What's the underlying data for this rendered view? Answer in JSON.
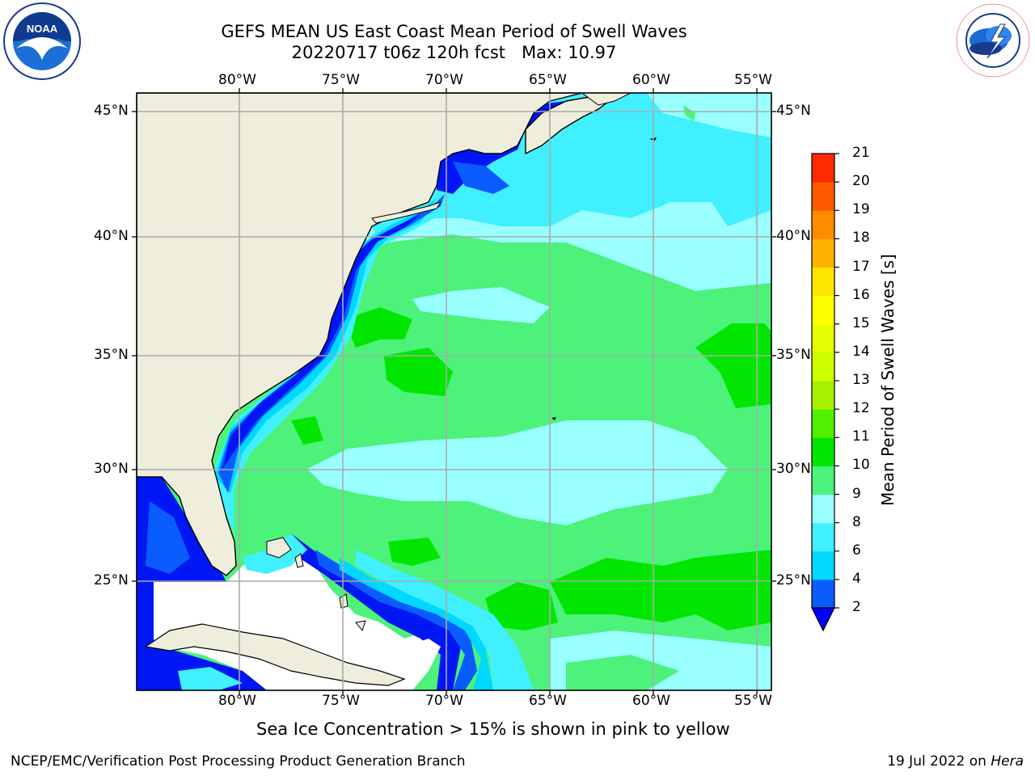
{
  "title": {
    "line1": "GEFS MEAN US East Coast Mean Period of Swell Waves",
    "line2": "20220717 t06z 120h fcst   Max: 10.97"
  },
  "logos": {
    "left": "NOAA",
    "right": "NATIONAL WEATHER SERVICE"
  },
  "axes": {
    "lon_labels_top": [
      "80°W",
      "75°W",
      "70°W",
      "65°W",
      "60°W",
      "55°W"
    ],
    "lon_labels_bottom": [
      "80°W",
      "75°W",
      "70°W",
      "65°W",
      "60°W",
      "55°W"
    ],
    "lat_labels_left": [
      "45°N",
      "40°N",
      "35°N",
      "30°N",
      "25°N"
    ],
    "lat_labels_right": [
      "45°N",
      "40°N",
      "35°N",
      "30°N",
      "25°N"
    ]
  },
  "colorbar": {
    "label": "Mean Period of Swell Waves [s]",
    "ticks": [
      "2",
      "4",
      "6",
      "8",
      "9",
      "10",
      "11",
      "12",
      "13",
      "14",
      "15",
      "16",
      "17",
      "18",
      "19",
      "20",
      "21"
    ],
    "colors": [
      "#0a5cff",
      "#00d8ff",
      "#40f0ff",
      "#99ffff",
      "#4cf27a",
      "#00e600",
      "#4ff000",
      "#a6f000",
      "#ccff00",
      "#e6ff00",
      "#ffff00",
      "#ffe600",
      "#ffb300",
      "#ff8c00",
      "#ff5a00",
      "#ff2a00"
    ],
    "under_color": "#0000ff"
  },
  "colors": {
    "land": "#efeedc",
    "grid": "#aaaaaa",
    "deep_blue": "#0016f5"
  },
  "notes": {
    "sea_ice": "Sea Ice Concentration > 15% is shown in pink to yellow"
  },
  "footer": {
    "left": "NCEP/EMC/Verification Post Processing Product Generation Branch",
    "right_date": "19 Jul 2022 on ",
    "right_host": "Hera"
  }
}
